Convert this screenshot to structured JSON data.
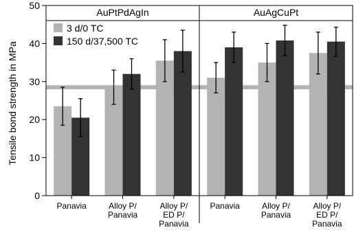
{
  "chart_data": {
    "type": "bar",
    "title": "",
    "xlabel": "",
    "ylabel": "Tensile bond strength in MPa",
    "ylim": [
      0,
      50
    ],
    "yticks": [
      0,
      10,
      20,
      30,
      40,
      50
    ],
    "reference_line": 28.5,
    "groups": [
      {
        "name": "AuPtPdAgIn",
        "categories": [
          [
            "Panavia"
          ],
          [
            "Alloy P/",
            "Panavia"
          ],
          [
            "Alloy P/",
            "ED P/",
            "Panavia"
          ]
        ],
        "series": [
          {
            "name": "3 d/0 TC",
            "values": [
              23.5,
              28.5,
              35.5
            ],
            "errors": [
              5,
              4.5,
              5.5
            ]
          },
          {
            "name": "150 d/37,500 TC",
            "values": [
              20.5,
              32,
              38
            ],
            "errors": [
              5,
              4,
              5.5
            ]
          }
        ]
      },
      {
        "name": "AuAgCuPt",
        "categories": [
          [
            "Panavia"
          ],
          [
            "Alloy P/",
            "Panavia"
          ],
          [
            "Alloy P/",
            "ED P/",
            "Panavia"
          ]
        ],
        "series": [
          {
            "name": "3 d/0 TC",
            "values": [
              31,
              35,
              37.5
            ],
            "errors": [
              4,
              5,
              5.5
            ]
          },
          {
            "name": "150 d/37,500 TC",
            "values": [
              39,
              40.8,
              40.5
            ],
            "errors": [
              4,
              4,
              3.8
            ]
          }
        ]
      }
    ],
    "legend": {
      "position": "top-left",
      "entries": [
        {
          "name": "3 d/0 TC",
          "color": "#b3b3b3"
        },
        {
          "name": "150 d/37,500 TC",
          "color": "#333333"
        }
      ]
    },
    "grid": false
  }
}
